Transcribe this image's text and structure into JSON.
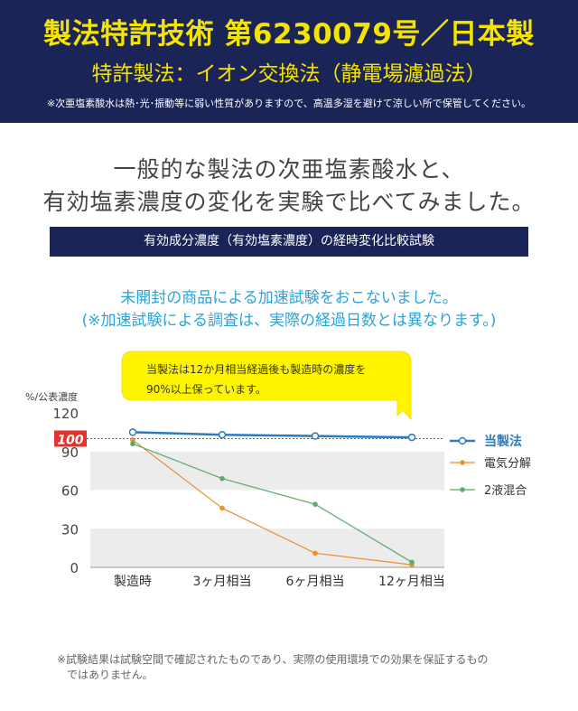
{
  "header": {
    "title": "製法特許技術 第6230079号／日本製",
    "subtitle": "特許製法：イオン交換法（静電場濾過法）",
    "note": "※次亜塩素酸水は熱･光･振動等に弱い性質がありますので、高温多湿を避けて涼しい所で保管してください。"
  },
  "intro": {
    "line1": "一般的な製法の次亜塩素酸水と、",
    "line2": "有効塩素濃度の変化を実験で比べてみました。"
  },
  "section_title": "有効成分濃度（有効塩素濃度）の経時変化比較試験",
  "method": {
    "line1": "未開封の商品による加速試験をおこないました。",
    "line2": "(※加速試験による調査は、実際の経過日数とは異なります。)"
  },
  "callout": {
    "line1": "当製法は12か月相当経過後も製造時の濃度を",
    "line2": "90%以上保っています。"
  },
  "footnote": {
    "line1": "※試験結果は試験空間で確認されたものであり、実際の使用環境での効果を保証するもの",
    "line2": "ではありません。"
  },
  "colors": {
    "navy": "#1b2456",
    "yellow": "#f5e400",
    "cyan": "#29a3d8",
    "series_main": "#2a7bc0",
    "series_electro": "#e8912e",
    "series_mix": "#5aaa6b",
    "reference_line": "#e5322d",
    "band": "#ececec",
    "callout_bg": "#fff500"
  },
  "chart_data": {
    "type": "line",
    "ylabel": "%/公表濃度",
    "categories": [
      "製造時",
      "3ヶ月相当",
      "6ヶ月相当",
      "12ヶ月相当"
    ],
    "yticks": [
      0,
      30,
      60,
      90,
      120
    ],
    "ylim": [
      0,
      120
    ],
    "reference_value": 100,
    "reference_label": "100",
    "grid": "alternating horizontal gray bands",
    "legend_position": "right",
    "series": [
      {
        "name": "当製法",
        "values": [
          105,
          103,
          102,
          101
        ],
        "color": "#2a7bc0",
        "marker": "open-circle"
      },
      {
        "name": "電気分解",
        "values": [
          99,
          46,
          11,
          2
        ],
        "color": "#e8912e",
        "marker": "dot"
      },
      {
        "name": "2液混合",
        "values": [
          96,
          69,
          49,
          4
        ],
        "color": "#5aaa6b",
        "marker": "dot"
      }
    ]
  }
}
